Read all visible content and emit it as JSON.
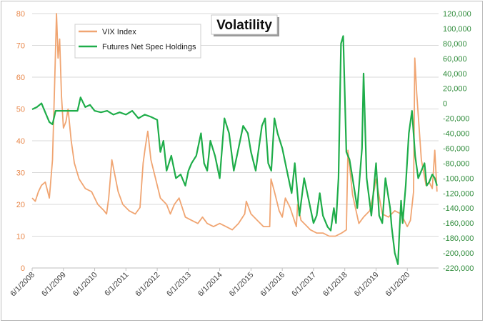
{
  "chart_data": {
    "type": "line",
    "title": "Volatility",
    "colors": {
      "vix": "#f0a572",
      "futures": "#1fad4a",
      "left_axis": "#e8874a",
      "right_axis": "#2e8b3a",
      "grid": "#d9d9d9"
    },
    "x_ticks": [
      "6/1/2008",
      "6/1/2009",
      "6/1/2010",
      "6/1/2011",
      "6/1/2012",
      "6/1/2013",
      "6/1/2014",
      "6/1/2015",
      "6/1/2016",
      "6/1/2017",
      "6/1/2018",
      "6/1/2019",
      "6/1/2020"
    ],
    "x_range": [
      2008.0,
      2021.0
    ],
    "left_axis": {
      "ticks": [
        0,
        10,
        20,
        30,
        40,
        50,
        60,
        70,
        80
      ],
      "labels": [
        "0",
        "10",
        "20",
        "30",
        "40",
        "50",
        "60",
        "70",
        "80"
      ],
      "range": [
        0,
        80
      ]
    },
    "right_axis": {
      "ticks": [
        -220000,
        -200000,
        -180000,
        -160000,
        -140000,
        -120000,
        -100000,
        -80000,
        -60000,
        -40000,
        -20000,
        0,
        20000,
        40000,
        60000,
        80000,
        100000,
        120000
      ],
      "labels": [
        "-220,000",
        "-200,000",
        "-180,000",
        "-160,000",
        "-140,000",
        "-120,000",
        "-100,000",
        "-80,000",
        "-60,000",
        "-40,000",
        "-20,000",
        "0",
        "20,000",
        "40,000",
        "60,000",
        "80,000",
        "100,000",
        "120,000"
      ],
      "range": [
        -220000,
        120000
      ]
    },
    "legend": {
      "placement": "top-left"
    },
    "series": [
      {
        "name": "VIX Index",
        "axis": "left",
        "x": [
          2008.0,
          2008.1,
          2008.2,
          2008.3,
          2008.42,
          2008.55,
          2008.65,
          2008.72,
          2008.78,
          2008.83,
          2008.88,
          2008.94,
          2009.0,
          2009.08,
          2009.15,
          2009.25,
          2009.35,
          2009.5,
          2009.7,
          2009.9,
          2010.1,
          2010.3,
          2010.38,
          2010.45,
          2010.55,
          2010.75,
          2010.9,
          2011.1,
          2011.3,
          2011.45,
          2011.55,
          2011.62,
          2011.7,
          2011.8,
          2011.95,
          2012.1,
          2012.3,
          2012.42,
          2012.55,
          2012.7,
          2012.9,
          2013.1,
          2013.3,
          2013.45,
          2013.6,
          2013.8,
          2014.0,
          2014.2,
          2014.4,
          2014.6,
          2014.8,
          2014.85,
          2015.0,
          2015.2,
          2015.4,
          2015.6,
          2015.64,
          2015.75,
          2015.9,
          2016.0,
          2016.1,
          2016.25,
          2016.45,
          2016.49,
          2016.6,
          2016.8,
          2016.9,
          2017.1,
          2017.3,
          2017.5,
          2017.7,
          2017.9,
          2018.05,
          2018.1,
          2018.25,
          2018.45,
          2018.6,
          2018.8,
          2018.95,
          2019.0,
          2019.2,
          2019.4,
          2019.6,
          2019.8,
          2020.0,
          2020.1,
          2020.2,
          2020.24,
          2020.3,
          2020.45,
          2020.6,
          2020.7,
          2020.8,
          2020.88,
          2020.95
        ],
        "values": [
          22,
          21,
          24,
          26,
          27,
          22,
          34,
          58,
          80,
          66,
          72,
          54,
          44,
          46,
          50,
          40,
          33,
          28,
          25,
          24,
          20,
          18,
          17,
          22,
          34,
          24,
          20,
          18,
          17,
          19,
          33,
          38,
          43,
          34,
          28,
          22,
          20,
          17,
          20,
          22,
          16,
          15,
          14,
          16,
          14,
          13,
          14,
          13,
          12,
          14,
          17,
          21,
          17,
          15,
          13,
          13,
          28,
          24,
          18,
          16,
          22,
          19,
          13,
          20,
          15,
          13,
          12,
          11,
          11,
          10,
          10,
          11,
          12,
          37,
          23,
          14,
          16,
          18,
          25,
          28,
          17,
          16,
          18,
          17,
          13,
          15,
          24,
          66,
          55,
          34,
          26,
          27,
          25,
          37,
          24
        ]
      },
      {
        "name": "Futures Net Spec Holdings",
        "axis": "right",
        "x": [
          2008.0,
          2008.15,
          2008.3,
          2008.45,
          2008.55,
          2008.65,
          2008.75,
          2008.9,
          2009.0,
          2009.15,
          2009.3,
          2009.45,
          2009.55,
          2009.7,
          2009.85,
          2010.0,
          2010.2,
          2010.4,
          2010.6,
          2010.8,
          2011.0,
          2011.2,
          2011.4,
          2011.6,
          2011.8,
          2012.0,
          2012.1,
          2012.2,
          2012.3,
          2012.45,
          2012.6,
          2012.75,
          2012.9,
          2013.0,
          2013.1,
          2013.25,
          2013.4,
          2013.5,
          2013.6,
          2013.7,
          2013.85,
          2014.0,
          2014.15,
          2014.3,
          2014.45,
          2014.6,
          2014.75,
          2014.9,
          2015.0,
          2015.15,
          2015.25,
          2015.35,
          2015.45,
          2015.55,
          2015.65,
          2015.75,
          2015.85,
          2016.0,
          2016.15,
          2016.3,
          2016.4,
          2016.55,
          2016.7,
          2016.85,
          2017.0,
          2017.1,
          2017.2,
          2017.3,
          2017.45,
          2017.55,
          2017.65,
          2017.72,
          2017.8,
          2017.88,
          2017.95,
          2018.05,
          2018.15,
          2018.25,
          2018.4,
          2018.55,
          2018.6,
          2018.7,
          2018.85,
          2019.0,
          2019.1,
          2019.2,
          2019.3,
          2019.45,
          2019.5,
          2019.6,
          2019.7,
          2019.75,
          2019.8,
          2019.85,
          2019.95,
          2020.05,
          2020.15,
          2020.25,
          2020.35,
          2020.45,
          2020.55,
          2020.62,
          2020.7,
          2020.8,
          2020.88,
          2020.95
        ],
        "values": [
          -8000,
          -5000,
          0,
          -15000,
          -25000,
          -28000,
          -10000,
          -10000,
          -10000,
          -10000,
          -10000,
          -10000,
          8000,
          -5000,
          -2000,
          -10000,
          -12000,
          -10000,
          -15000,
          -12000,
          -15000,
          -10000,
          -20000,
          -15000,
          -18000,
          -22000,
          -65000,
          -50000,
          -90000,
          -70000,
          -100000,
          -95000,
          -110000,
          -90000,
          -80000,
          -70000,
          -40000,
          -80000,
          -90000,
          -50000,
          -70000,
          -100000,
          -20000,
          -40000,
          -90000,
          -60000,
          -30000,
          -40000,
          -65000,
          -90000,
          -60000,
          -30000,
          -20000,
          -80000,
          -90000,
          -20000,
          -40000,
          -60000,
          -90000,
          -120000,
          -80000,
          -150000,
          -100000,
          -130000,
          -160000,
          -150000,
          -120000,
          -150000,
          -165000,
          -170000,
          -140000,
          -160000,
          -100000,
          80000,
          90000,
          -65000,
          -75000,
          -100000,
          -140000,
          -60000,
          40000,
          -100000,
          -150000,
          -80000,
          -150000,
          -160000,
          -100000,
          -140000,
          -165000,
          -200000,
          -215000,
          -170000,
          -130000,
          -160000,
          -110000,
          -40000,
          -10000,
          -70000,
          -100000,
          -90000,
          -80000,
          -110000,
          -105000,
          -95000,
          -100000,
          -110000
        ]
      }
    ]
  }
}
